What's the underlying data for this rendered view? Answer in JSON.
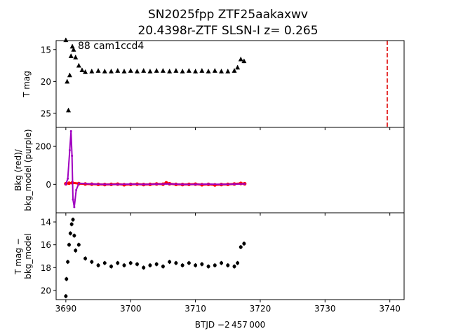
{
  "title_line1": "SN2025fpp  ZTF25aakaxwv",
  "title_line2": "20.4398r-ZTF SLSN-I z= 0.265",
  "annotation": "88 cam1ccd4",
  "xlabel": "BTJD −2 457 000",
  "x_ticks": [
    "3690",
    "3700",
    "3710",
    "3720",
    "3730",
    "3740"
  ],
  "colors": {
    "data": "#000000",
    "bkg": "#ff0000",
    "bkg_model": "#a000c0",
    "marker_line": "#e00000"
  },
  "chart_data": [
    {
      "type": "scatter",
      "panel": "top",
      "ylabel": "T mag",
      "y_inverted": true,
      "xlim": [
        3688.5,
        3742.2
      ],
      "ylim": [
        27.2,
        13.6
      ],
      "y_ticks": [
        "15",
        "20",
        "25"
      ],
      "x_ticks": [
        3690,
        3700,
        3710,
        3720,
        3730,
        3740
      ],
      "vertical_line": {
        "x": 3739.6,
        "color": "red",
        "style": "dashed"
      },
      "series": [
        {
          "x": [
            3690.0,
            3690.2,
            3690.4,
            3690.6,
            3690.8,
            3691.0,
            3691.2,
            3691.5,
            3692.0,
            3692.5,
            3693.0,
            3694.0,
            3695.0,
            3696.0,
            3697.0,
            3698.0,
            3699.0,
            3700.0,
            3701.0,
            3702.0,
            3703.0,
            3704.0,
            3705.0,
            3706.0,
            3707.0,
            3708.0,
            3709.0,
            3710.0,
            3711.0,
            3712.0,
            3713.0,
            3714.0,
            3715.0,
            3716.0,
            3716.5,
            3717.0,
            3717.5
          ],
          "y": [
            13.5,
            20.0,
            24.5,
            19.0,
            16.0,
            14.5,
            15.0,
            16.2,
            17.5,
            18.2,
            18.5,
            18.4,
            18.3,
            18.4,
            18.4,
            18.3,
            18.4,
            18.3,
            18.4,
            18.3,
            18.4,
            18.3,
            18.3,
            18.4,
            18.3,
            18.4,
            18.3,
            18.4,
            18.3,
            18.4,
            18.3,
            18.4,
            18.4,
            18.3,
            17.8,
            16.5,
            16.8
          ]
        }
      ]
    },
    {
      "type": "line",
      "panel": "middle",
      "ylabel": "Bkg (red)/\nbkg_model (purple)",
      "xlim": [
        3688.5,
        3742.2
      ],
      "ylim": [
        -150,
        300
      ],
      "y_ticks": [
        "0",
        "200"
      ],
      "series": [
        {
          "color": "red",
          "x": [
            3690.0,
            3690.5,
            3691.0,
            3692.0,
            3693.0,
            3694.0,
            3695.0,
            3696.0,
            3697.0,
            3698.0,
            3699.0,
            3700.0,
            3701.0,
            3702.0,
            3703.0,
            3704.0,
            3705.0,
            3705.5,
            3706.0,
            3707.0,
            3708.0,
            3709.0,
            3710.0,
            3711.0,
            3712.0,
            3713.0,
            3714.0,
            3715.0,
            3716.0,
            3717.0,
            3717.6
          ],
          "y": [
            3,
            6,
            8,
            4,
            2,
            1,
            0,
            -1,
            0,
            1,
            -2,
            0,
            1,
            -1,
            0,
            2,
            1,
            8,
            3,
            0,
            -1,
            0,
            1,
            -2,
            0,
            -3,
            -1,
            0,
            2,
            5,
            3
          ]
        },
        {
          "color": "purple",
          "x": [
            3690.0,
            3690.3,
            3690.6,
            3690.8,
            3690.95,
            3691.1,
            3691.3,
            3691.6,
            3692.0,
            3694.0,
            3696.0,
            3698.0,
            3700.0,
            3702.0,
            3704.0,
            3706.0,
            3708.0,
            3710.0,
            3712.0,
            3714.0,
            3716.0,
            3717.6
          ],
          "y": [
            0,
            30,
            180,
            280,
            150,
            -80,
            -120,
            -30,
            5,
            2,
            0,
            0,
            1,
            0,
            1,
            2,
            0,
            0,
            1,
            0,
            1,
            2
          ]
        }
      ]
    },
    {
      "type": "scatter",
      "panel": "bottom",
      "ylabel": "T mag −\nbkg_model",
      "y_inverted": true,
      "xlim": [
        3688.5,
        3742.2
      ],
      "ylim": [
        20.8,
        13.2
      ],
      "y_ticks": [
        "14",
        "16",
        "18",
        "20"
      ],
      "series": [
        {
          "x": [
            3690.0,
            3690.1,
            3690.3,
            3690.5,
            3690.7,
            3690.9,
            3691.1,
            3691.3,
            3691.5,
            3692.0,
            3693.0,
            3694.0,
            3695.0,
            3696.0,
            3697.0,
            3698.0,
            3699.0,
            3700.0,
            3701.0,
            3702.0,
            3703.0,
            3704.0,
            3705.0,
            3706.0,
            3707.0,
            3708.0,
            3709.0,
            3710.0,
            3711.0,
            3712.0,
            3713.0,
            3714.0,
            3715.0,
            3716.0,
            3716.5,
            3717.0,
            3717.5
          ],
          "y": [
            20.5,
            19.0,
            17.5,
            16.0,
            15.0,
            14.2,
            13.8,
            15.2,
            16.5,
            16.0,
            17.2,
            17.5,
            17.8,
            17.6,
            17.9,
            17.6,
            17.8,
            17.6,
            17.7,
            18.0,
            17.8,
            17.7,
            17.9,
            17.5,
            17.6,
            17.8,
            17.6,
            17.8,
            17.7,
            17.9,
            17.8,
            17.6,
            17.8,
            17.9,
            17.6,
            16.2,
            15.9
          ]
        }
      ]
    }
  ]
}
